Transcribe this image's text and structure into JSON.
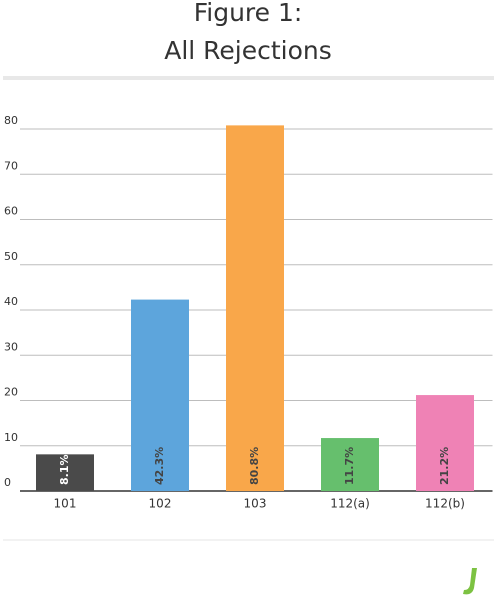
{
  "chart_data": {
    "type": "bar",
    "title": "Figure 1:",
    "subtitle": "All Rejections",
    "categories": [
      "101",
      "102",
      "103",
      "112(a)",
      "112(b)"
    ],
    "values": [
      8.1,
      42.3,
      80.8,
      11.7,
      21.2
    ],
    "value_labels": [
      "8.1%",
      "42.3%",
      "80.8%",
      "11.7%",
      "21.2%"
    ],
    "colors": [
      "#4a4a4a",
      "#5da5dc",
      "#f9a74a",
      "#66bf6d",
      "#ef82b5"
    ],
    "ylim": [
      0,
      80
    ],
    "yticks": [
      0,
      10,
      20,
      30,
      40,
      50,
      60,
      70,
      80
    ],
    "grid": true
  }
}
